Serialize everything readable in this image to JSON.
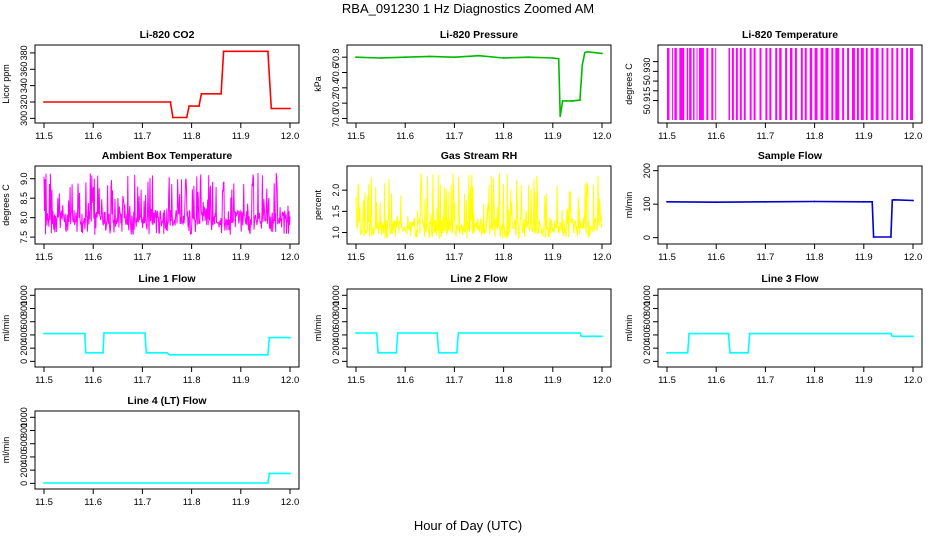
{
  "figure": {
    "title": "RBA_091230  1 Hz Diagnostics Zoomed AM",
    "xlabel": "Hour of Day (UTC)"
  },
  "chart_data": [
    {
      "type": "line",
      "title": "Li-820 CO2",
      "ylabel": "Licor ppm",
      "color": "#ff0000",
      "xlim": [
        11.5,
        12.0
      ],
      "ylim": [
        298,
        386
      ],
      "xticks": [
        11.5,
        11.6,
        11.7,
        11.8,
        11.9,
        12.0
      ],
      "xtick_labels": [
        "11.5",
        "11.6",
        "11.7",
        "11.8",
        "11.9",
        "12.0"
      ],
      "yticks": [
        300,
        320,
        340,
        360,
        380
      ],
      "ytick_labels": [
        "300",
        "320",
        "340",
        "360",
        "380"
      ],
      "x": [
        11.5,
        11.757,
        11.762,
        11.79,
        11.795,
        11.815,
        11.82,
        11.86,
        11.865,
        11.955,
        11.962,
        12.0
      ],
      "y": [
        320,
        320,
        301,
        301,
        315,
        315,
        330,
        330,
        382,
        382,
        312,
        312
      ]
    },
    {
      "type": "line",
      "title": "Li-820 Pressure",
      "ylabel": "kPa",
      "color": "#00bb00",
      "xlim": [
        11.5,
        12.0
      ],
      "ylim": [
        69.98,
        70.92
      ],
      "xticks": [
        11.5,
        11.6,
        11.7,
        11.8,
        11.9,
        12.0
      ],
      "xtick_labels": [
        "11.5",
        "11.6",
        "11.7",
        "11.8",
        "11.9",
        "12.0"
      ],
      "yticks": [
        70.0,
        70.2,
        70.4,
        70.6,
        70.8
      ],
      "ytick_labels": [
        "70.0",
        "70.2",
        "70.4",
        "70.6",
        "70.8"
      ],
      "x": [
        11.5,
        11.55,
        11.6,
        11.65,
        11.7,
        11.75,
        11.8,
        11.85,
        11.9,
        11.912,
        11.915,
        11.92,
        11.94,
        11.955,
        11.96,
        11.965,
        11.97,
        12.0
      ],
      "y": [
        70.8,
        70.79,
        70.8,
        70.81,
        70.8,
        70.82,
        70.79,
        70.8,
        70.79,
        70.78,
        70.03,
        70.23,
        70.23,
        70.24,
        70.7,
        70.86,
        70.87,
        70.85
      ]
    },
    {
      "type": "line",
      "title": "Li-820 Temperature",
      "ylabel": "degrees C",
      "color": "#ff00ff",
      "xlim": [
        11.5,
        12.0
      ],
      "ylim": [
        50.905,
        50.942
      ],
      "xticks": [
        11.5,
        11.6,
        11.7,
        11.8,
        11.9,
        12.0
      ],
      "xtick_labels": [
        "11.5",
        "11.6",
        "11.7",
        "11.8",
        "11.9",
        "12.0"
      ],
      "yticks": [
        50.915,
        50.92,
        50.925,
        50.93,
        50.935
      ],
      "ytick_labels": [
        "50.915",
        "",
        "",
        "50.930",
        ""
      ],
      "levels": [
        50.905,
        50.942
      ],
      "band_edges": [
        11.5,
        11.505,
        11.51,
        11.512,
        11.515,
        11.52,
        11.525,
        11.535,
        11.54,
        11.543,
        11.545,
        11.55,
        11.553,
        11.556,
        11.56,
        11.562,
        11.565,
        11.575,
        11.58,
        11.584,
        11.59,
        11.594,
        11.598,
        11.6,
        11.625,
        11.628,
        11.632,
        11.636,
        11.64,
        11.644,
        11.648,
        11.652,
        11.656,
        11.66,
        11.668,
        11.672,
        11.676,
        11.68,
        11.688,
        11.692,
        11.7,
        11.704,
        11.708,
        11.712,
        11.72,
        11.724,
        11.728,
        11.733,
        11.74,
        11.744,
        11.75,
        11.755,
        11.76,
        11.764,
        11.772,
        11.776,
        11.78,
        11.784,
        11.79,
        11.795,
        11.8,
        11.806,
        11.812,
        11.818,
        11.822,
        11.828,
        11.834,
        11.838,
        11.842,
        11.85,
        11.856,
        11.86,
        11.866,
        11.87,
        11.876,
        11.882,
        11.886,
        11.89,
        11.894,
        11.9,
        11.904,
        11.908,
        11.914,
        11.92,
        11.924,
        11.93,
        11.936,
        11.94,
        11.946,
        11.95,
        11.956,
        11.96,
        11.966,
        11.97,
        11.976,
        11.98,
        11.986,
        11.99,
        11.994,
        12.0
      ]
    },
    {
      "type": "line",
      "title": "Ambient Box Temperature",
      "ylabel": "degrees C",
      "color": "#ff00ff",
      "xlim": [
        11.5,
        12.0
      ],
      "ylim": [
        7.4,
        9.25
      ],
      "xticks": [
        11.5,
        11.6,
        11.7,
        11.8,
        11.9,
        12.0
      ],
      "xtick_labels": [
        "11.5",
        "11.6",
        "11.7",
        "11.8",
        "11.9",
        "12.0"
      ],
      "yticks": [
        7.5,
        8.0,
        8.5,
        9.0
      ],
      "ytick_labels": [
        "7.5",
        "8.0",
        "8.5",
        "9.0"
      ],
      "noise": {
        "base": 8.0,
        "low": 7.55,
        "high": 9.15,
        "points": 500,
        "seed": 7
      }
    },
    {
      "type": "line",
      "title": "Gas Stream RH",
      "ylabel": "percent",
      "color": "#ffff00",
      "xlim": [
        11.5,
        12.0
      ],
      "ylim": [
        0.8,
        2.5
      ],
      "xticks": [
        11.5,
        11.6,
        11.7,
        11.8,
        11.9,
        12.0
      ],
      "xtick_labels": [
        "11.5",
        "11.6",
        "11.7",
        "11.8",
        "11.9",
        "12.0"
      ],
      "yticks": [
        1.0,
        1.5,
        2.0
      ],
      "ytick_labels": [
        "1.0",
        "1.5",
        "2.0"
      ],
      "noise": {
        "base": 1.15,
        "low": 0.85,
        "high": 2.4,
        "points": 500,
        "seed": 3
      }
    },
    {
      "type": "line",
      "title": "Sample Flow",
      "ylabel": "ml/min",
      "color": "#0000cc",
      "xlim": [
        11.5,
        12.0
      ],
      "ylim": [
        -10,
        205
      ],
      "xticks": [
        11.5,
        11.6,
        11.7,
        11.8,
        11.9,
        12.0
      ],
      "xtick_labels": [
        "11.5",
        "11.6",
        "11.7",
        "11.8",
        "11.9",
        "12.0"
      ],
      "yticks": [
        0,
        100,
        200
      ],
      "ytick_labels": [
        "0",
        "100",
        "200"
      ],
      "x": [
        11.5,
        11.6,
        11.7,
        11.8,
        11.9,
        11.917,
        11.92,
        11.955,
        11.958,
        11.962,
        12.0
      ],
      "y": [
        107,
        106,
        107,
        108,
        107,
        107,
        2,
        2,
        112,
        113,
        111
      ]
    },
    {
      "type": "line",
      "title": "Line 1 Flow",
      "ylabel": "ml/min",
      "color": "#00ffff",
      "xlim": [
        11.5,
        12.0
      ],
      "ylim": [
        -40,
        1050
      ],
      "xticks": [
        11.5,
        11.6,
        11.7,
        11.8,
        11.9,
        12.0
      ],
      "xtick_labels": [
        "11.5",
        "11.6",
        "11.7",
        "11.8",
        "11.9",
        "12.0"
      ],
      "yticks": [
        0,
        200,
        400,
        600,
        800,
        1000
      ],
      "ytick_labels": [
        "0",
        "200",
        "400",
        "600",
        "800",
        "1000"
      ],
      "x": [
        11.5,
        11.583,
        11.585,
        11.62,
        11.622,
        11.705,
        11.708,
        11.75,
        11.755,
        11.955,
        11.958,
        12.0
      ],
      "y": [
        420,
        420,
        130,
        130,
        430,
        430,
        130,
        130,
        100,
        100,
        360,
        360
      ]
    },
    {
      "type": "line",
      "title": "Line 2 Flow",
      "ylabel": "ml/min",
      "color": "#00ffff",
      "xlim": [
        11.5,
        12.0
      ],
      "ylim": [
        -40,
        1050
      ],
      "xticks": [
        11.5,
        11.6,
        11.7,
        11.8,
        11.9,
        12.0
      ],
      "xtick_labels": [
        "11.5",
        "11.6",
        "11.7",
        "11.8",
        "11.9",
        "12.0"
      ],
      "yticks": [
        0,
        200,
        400,
        600,
        800,
        1000
      ],
      "ytick_labels": [
        "0",
        "200",
        "400",
        "600",
        "800",
        "1000"
      ],
      "x": [
        11.5,
        11.542,
        11.545,
        11.582,
        11.585,
        11.665,
        11.668,
        11.705,
        11.708,
        11.955,
        11.958,
        12.0
      ],
      "y": [
        430,
        430,
        130,
        130,
        430,
        430,
        130,
        130,
        430,
        430,
        380,
        380
      ]
    },
    {
      "type": "line",
      "title": "Line 3 Flow",
      "ylabel": "ml/min",
      "color": "#00ffff",
      "xlim": [
        11.5,
        12.0
      ],
      "ylim": [
        -40,
        1050
      ],
      "xticks": [
        11.5,
        11.6,
        11.7,
        11.8,
        11.9,
        12.0
      ],
      "xtick_labels": [
        "11.5",
        "11.6",
        "11.7",
        "11.8",
        "11.9",
        "12.0"
      ],
      "yticks": [
        0,
        200,
        400,
        600,
        800,
        1000
      ],
      "ytick_labels": [
        "0",
        "200",
        "400",
        "600",
        "800",
        "1000"
      ],
      "x": [
        11.5,
        11.542,
        11.545,
        11.625,
        11.628,
        11.665,
        11.668,
        11.955,
        11.958,
        12.0
      ],
      "y": [
        130,
        130,
        420,
        420,
        130,
        130,
        420,
        420,
        380,
        380
      ]
    },
    {
      "type": "line",
      "title": "Line 4 (LT) Flow",
      "ylabel": "ml/min",
      "color": "#00ffff",
      "xlim": [
        11.5,
        12.0
      ],
      "ylim": [
        -40,
        1050
      ],
      "xticks": [
        11.5,
        11.6,
        11.7,
        11.8,
        11.9,
        12.0
      ],
      "xtick_labels": [
        "11.5",
        "11.6",
        "11.7",
        "11.8",
        "11.9",
        "12.0"
      ],
      "yticks": [
        0,
        200,
        400,
        600,
        800,
        1000
      ],
      "ytick_labels": [
        "0",
        "200",
        "400",
        "600",
        "800",
        "1000"
      ],
      "x": [
        11.5,
        11.955,
        11.958,
        12.0
      ],
      "y": [
        5,
        5,
        150,
        150
      ]
    }
  ]
}
